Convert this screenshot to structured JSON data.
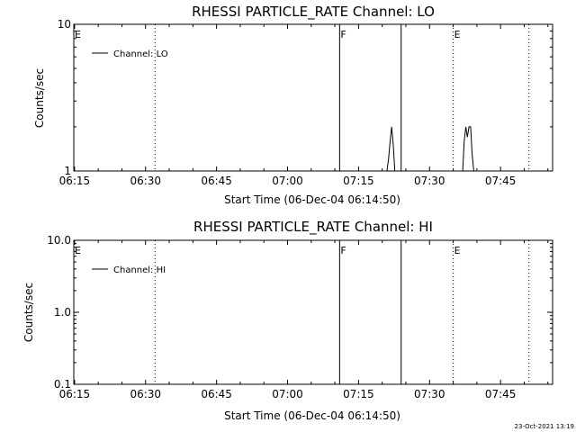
{
  "chart_data": [
    {
      "type": "line",
      "title": "RHESSI PARTICLE_RATE Channel: LO",
      "xlabel": "Start Time (06-Dec-04 06:14:50)",
      "ylabel": "Counts/sec",
      "y_scale": "log",
      "ylim": [
        1,
        10
      ],
      "y_ticks": [
        "1",
        "10"
      ],
      "xlim": [
        "06:14:50",
        "07:56:00"
      ],
      "x_ticks": [
        "06:15",
        "06:30",
        "06:45",
        "07:00",
        "07:15",
        "07:30",
        "07:45"
      ],
      "legend": "top-left",
      "series": [
        {
          "name": "Channel: LO",
          "x": [
            "07:21:00",
            "07:21:20",
            "07:21:40",
            "07:22:00",
            "07:22:20",
            "07:22:40",
            "07:37:00",
            "07:37:20",
            "07:37:40",
            "07:38:00",
            "07:38:20",
            "07:38:40",
            "07:39:00",
            "07:39:20"
          ],
          "values": [
            1,
            1.2,
            1.6,
            2.0,
            1.5,
            1,
            1,
            1.6,
            2.0,
            1.7,
            2.0,
            2.0,
            1.3,
            1
          ]
        }
      ],
      "event_lines": [
        {
          "x": "06:14:50",
          "label": "E",
          "style": "none"
        },
        {
          "x": "06:32:00",
          "label": "",
          "style": "dotted"
        },
        {
          "x": "07:11:00",
          "label": "F",
          "style": "solid"
        },
        {
          "x": "07:24:00",
          "label": "",
          "style": "solid"
        },
        {
          "x": "07:35:00",
          "label": "E",
          "style": "dotted"
        },
        {
          "x": "07:51:00",
          "label": "",
          "style": "dotted"
        }
      ]
    },
    {
      "type": "line",
      "title": "RHESSI PARTICLE_RATE Channel: HI",
      "xlabel": "Start Time (06-Dec-04 06:14:50)",
      "ylabel": "Counts/sec",
      "y_scale": "log",
      "ylim": [
        0.1,
        10
      ],
      "y_ticks": [
        "0.1",
        "1.0",
        "10.0"
      ],
      "xlim": [
        "06:14:50",
        "07:56:00"
      ],
      "x_ticks": [
        "06:15",
        "06:30",
        "06:45",
        "07:00",
        "07:15",
        "07:30",
        "07:45"
      ],
      "legend": "top-left",
      "series": [
        {
          "name": "Channel: HI",
          "x": [],
          "values": []
        }
      ],
      "event_lines": [
        {
          "x": "06:14:50",
          "label": "E",
          "style": "none"
        },
        {
          "x": "06:32:00",
          "label": "",
          "style": "dotted"
        },
        {
          "x": "07:11:00",
          "label": "F",
          "style": "solid"
        },
        {
          "x": "07:24:00",
          "label": "",
          "style": "solid"
        },
        {
          "x": "07:35:00",
          "label": "E",
          "style": "dotted"
        },
        {
          "x": "07:51:00",
          "label": "",
          "style": "dotted"
        }
      ]
    }
  ],
  "footer": {
    "timestamp": "23-Oct-2021 13:19"
  }
}
